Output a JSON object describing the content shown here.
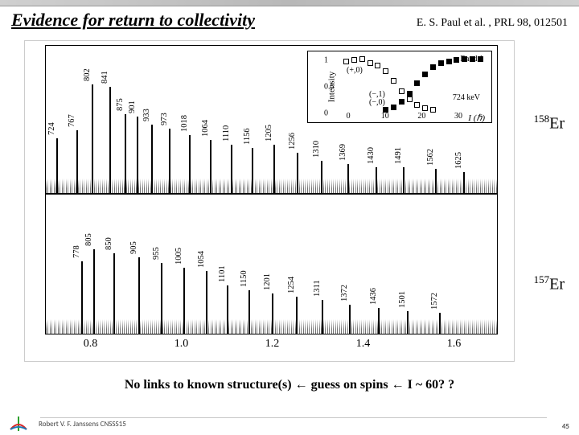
{
  "header": {
    "title": "Evidence for return to collectivity",
    "citation": "E. S. Paul et al. , PRL 98, 012501"
  },
  "isotopes": {
    "top": {
      "mass": "158",
      "element": "Er"
    },
    "bottom": {
      "mass": "157",
      "element": "Er"
    }
  },
  "xaxis": {
    "ticks": [
      0.8,
      1.0,
      1.2,
      1.4,
      1.6
    ],
    "min": 0.7,
    "max": 1.7
  },
  "spectra": {
    "top": {
      "peaks": [
        {
          "e": 724,
          "h": 68
        },
        {
          "e": 767,
          "h": 78
        },
        {
          "e": 802,
          "h": 135
        },
        {
          "e": 841,
          "h": 132
        },
        {
          "e": 875,
          "h": 98
        },
        {
          "e": 901,
          "h": 95
        },
        {
          "e": 933,
          "h": 85
        },
        {
          "e": 973,
          "h": 80
        },
        {
          "e": 1018,
          "h": 72
        },
        {
          "e": 1064,
          "h": 66
        },
        {
          "e": 1110,
          "h": 60
        },
        {
          "e": 1156,
          "h": 56
        },
        {
          "e": 1205,
          "h": 60
        },
        {
          "e": 1256,
          "h": 50
        },
        {
          "e": 1310,
          "h": 40
        },
        {
          "e": 1369,
          "h": 36
        },
        {
          "e": 1430,
          "h": 32
        },
        {
          "e": 1491,
          "h": 32
        },
        {
          "e": 1562,
          "h": 30
        },
        {
          "e": 1625,
          "h": 26
        }
      ]
    },
    "bottom": {
      "peaks": [
        {
          "e": 778,
          "h": 90
        },
        {
          "e": 805,
          "h": 105
        },
        {
          "e": 850,
          "h": 100
        },
        {
          "e": 905,
          "h": 95
        },
        {
          "e": 955,
          "h": 88
        },
        {
          "e": 1005,
          "h": 82
        },
        {
          "e": 1054,
          "h": 78
        },
        {
          "e": 1101,
          "h": 60
        },
        {
          "e": 1150,
          "h": 54
        },
        {
          "e": 1201,
          "h": 50
        },
        {
          "e": 1254,
          "h": 46
        },
        {
          "e": 1311,
          "h": 42
        },
        {
          "e": 1372,
          "h": 36
        },
        {
          "e": 1436,
          "h": 32
        },
        {
          "e": 1501,
          "h": 28
        },
        {
          "e": 1572,
          "h": 26
        }
      ]
    }
  },
  "inset": {
    "ylabel": "Intensity",
    "xlabel": "I (ℏ)",
    "yticks": [
      0.0,
      0.5,
      1.0
    ],
    "xticks": [
      0,
      10,
      20,
      30
    ],
    "band_label": "Band 1",
    "legends": [
      "(+,0)",
      "(−,1)",
      "(−,0)"
    ],
    "extra_label": "724 keV",
    "series_a": [
      {
        "x": 2,
        "y": 0.95
      },
      {
        "x": 4,
        "y": 0.98
      },
      {
        "x": 6,
        "y": 1.0
      },
      {
        "x": 8,
        "y": 0.92
      },
      {
        "x": 10,
        "y": 0.88
      },
      {
        "x": 12,
        "y": 0.78
      },
      {
        "x": 14,
        "y": 0.6
      },
      {
        "x": 16,
        "y": 0.4
      },
      {
        "x": 18,
        "y": 0.25
      },
      {
        "x": 20,
        "y": 0.15
      },
      {
        "x": 22,
        "y": 0.08
      },
      {
        "x": 24,
        "y": 0.05
      }
    ],
    "series_b": [
      {
        "x": 12,
        "y": 0.05
      },
      {
        "x": 14,
        "y": 0.1
      },
      {
        "x": 16,
        "y": 0.2
      },
      {
        "x": 18,
        "y": 0.35
      },
      {
        "x": 20,
        "y": 0.55
      },
      {
        "x": 22,
        "y": 0.72
      },
      {
        "x": 24,
        "y": 0.85
      },
      {
        "x": 26,
        "y": 0.92
      },
      {
        "x": 28,
        "y": 0.96
      },
      {
        "x": 30,
        "y": 0.98
      },
      {
        "x": 32,
        "y": 1.0
      },
      {
        "x": 34,
        "y": 1.0
      },
      {
        "x": 36,
        "y": 1.0
      }
    ]
  },
  "conclusion": {
    "part1": "No links to known structure(s) ",
    "arrow": "←",
    "part2": " guess on spins ",
    "part3": " I ~ 60? ?"
  },
  "footer": {
    "author": "Robert V. F. Janssens CNSSS15",
    "page": "45"
  },
  "colors": {
    "peak": "#000000",
    "border": "#000000",
    "bg": "#ffffff",
    "header_grad": "#c8c8c8"
  }
}
